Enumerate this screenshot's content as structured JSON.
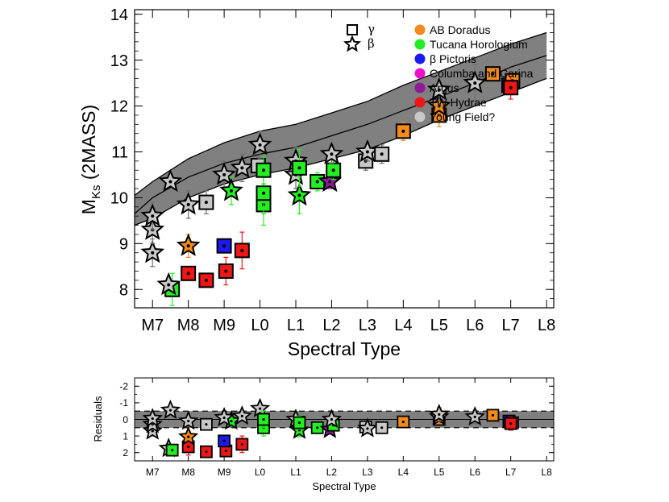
{
  "chart_data": [
    {
      "type": "scatter",
      "panel": "main",
      "xlabel": "Spectral Type",
      "ylabel": "M",
      "ylabel_sub": "Ks",
      "ylabel_suffix": "(2MASS)",
      "x_ticks": [
        "M7",
        "M8",
        "M9",
        "L0",
        "L1",
        "L2",
        "L3",
        "L4",
        "L5",
        "L6",
        "L7",
        "L8"
      ],
      "xlim": [
        -0.5,
        11.2
      ],
      "ylim": [
        14.1,
        7.6
      ],
      "y_ticks": [
        8,
        9,
        10,
        11,
        12,
        13,
        14
      ],
      "band": {
        "x": [
          -0.5,
          0.0,
          1.0,
          2.0,
          3.0,
          4.0,
          5.0,
          6.0,
          7.0,
          8.0,
          9.0,
          10.0,
          11.0
        ],
        "center": [
          9.65,
          10.0,
          10.45,
          10.75,
          10.95,
          11.1,
          11.35,
          11.6,
          11.9,
          12.2,
          12.5,
          12.85,
          13.1
        ],
        "lower": [
          9.4,
          9.55,
          10.0,
          10.3,
          10.5,
          10.65,
          10.85,
          11.05,
          11.35,
          11.7,
          12.0,
          12.3,
          12.6
        ],
        "upper": [
          10.05,
          10.35,
          10.85,
          11.2,
          11.45,
          11.6,
          11.85,
          12.1,
          12.45,
          12.75,
          13.05,
          13.35,
          13.6
        ]
      },
      "points": [
        {
          "x": 0.55,
          "y": 8.0,
          "group": "Tucana Horologium",
          "sym": "square",
          "err": 0.35
        },
        {
          "x": 1.0,
          "y": 8.35,
          "group": "TW Hydrae",
          "sym": "square",
          "err": 0.15
        },
        {
          "x": 1.5,
          "y": 8.2,
          "group": "TW Hydrae",
          "sym": "square",
          "err": 0.15
        },
        {
          "x": 2.05,
          "y": 8.4,
          "group": "TW Hydrae",
          "sym": "square",
          "err": 0.3
        },
        {
          "x": 2.5,
          "y": 8.85,
          "group": "TW Hydrae",
          "sym": "square",
          "err": 0.4
        },
        {
          "x": 2.0,
          "y": 8.95,
          "group": "β Pictoris",
          "sym": "square",
          "err": 0.1
        },
        {
          "x": 0.45,
          "y": 8.1,
          "group": "Young Field?",
          "sym": "star",
          "err": 0.1
        },
        {
          "x": 1.0,
          "y": 8.95,
          "group": "AB Doradus",
          "sym": "star",
          "err": 0.25
        },
        {
          "x": 0.0,
          "y": 8.8,
          "group": "Young Field?",
          "sym": "star",
          "err": 0.3
        },
        {
          "x": 0.0,
          "y": 9.3,
          "group": "Young Field?",
          "sym": "star",
          "err": 0.3
        },
        {
          "x": 0.0,
          "y": 9.6,
          "group": "Young Field?",
          "sym": "star",
          "err": 0.3
        },
        {
          "x": 0.5,
          "y": 10.35,
          "group": "Young Field?",
          "sym": "star",
          "err": 0.1
        },
        {
          "x": 1.0,
          "y": 9.85,
          "group": "Young Field?",
          "sym": "star",
          "err": 0.3
        },
        {
          "x": 1.5,
          "y": 9.9,
          "group": "Young Field?",
          "sym": "square",
          "err": 0.25
        },
        {
          "x": 2.0,
          "y": 10.5,
          "group": "Young Field?",
          "sym": "star",
          "err": 0.3
        },
        {
          "x": 2.2,
          "y": 10.15,
          "group": "Tucana Horologium",
          "sym": "star",
          "err": 0.3
        },
        {
          "x": 2.5,
          "y": 10.65,
          "group": "Young Field?",
          "sym": "star",
          "err": 0.3
        },
        {
          "x": 2.95,
          "y": 10.7,
          "group": "Young Field?",
          "sym": "square",
          "err": 0.2
        },
        {
          "x": 3.0,
          "y": 11.15,
          "group": "Young Field?",
          "sym": "star",
          "err": 0.3
        },
        {
          "x": 3.1,
          "y": 9.85,
          "group": "Tucana Horologium",
          "sym": "square",
          "err": 0.45
        },
        {
          "x": 3.1,
          "y": 10.1,
          "group": "Tucana Horologium",
          "sym": "square",
          "err": 0.45
        },
        {
          "x": 3.1,
          "y": 10.6,
          "group": "Tucana Horologium",
          "sym": "square",
          "err": 0.3
        },
        {
          "x": 4.0,
          "y": 10.5,
          "group": "Young Field?",
          "sym": "star",
          "err": 0.3
        },
        {
          "x": 4.0,
          "y": 10.8,
          "group": "Young Field?",
          "sym": "star",
          "err": 0.3
        },
        {
          "x": 4.1,
          "y": 10.05,
          "group": "Tucana Horologium",
          "sym": "star",
          "err": 0.4
        },
        {
          "x": 4.1,
          "y": 10.65,
          "group": "Tucana Horologium",
          "sym": "square",
          "err": 0.4
        },
        {
          "x": 4.6,
          "y": 10.35,
          "group": "Tucana Horologium",
          "sym": "square",
          "err": 0.2
        },
        {
          "x": 4.95,
          "y": 10.35,
          "group": "Argus",
          "sym": "star",
          "err": 0.15
        },
        {
          "x": 5.05,
          "y": 10.6,
          "group": "Tucana Horologium",
          "sym": "square",
          "err": 0.2
        },
        {
          "x": 5.0,
          "y": 10.95,
          "group": "Young Field?",
          "sym": "star",
          "err": 0.2
        },
        {
          "x": 5.95,
          "y": 10.8,
          "group": "Young Field?",
          "sym": "square",
          "err": 0.2
        },
        {
          "x": 6.0,
          "y": 11.0,
          "group": "Young Field?",
          "sym": "star",
          "err": 0.2
        },
        {
          "x": 6.4,
          "y": 10.95,
          "group": "Young Field?",
          "sym": "square",
          "err": 0.2
        },
        {
          "x": 7.0,
          "y": 11.45,
          "group": "AB Doradus",
          "sym": "square",
          "err": 0.2
        },
        {
          "x": 8.0,
          "y": 11.8,
          "group": "AB Doradus",
          "sym": "square",
          "err": 0.25
        },
        {
          "x": 8.0,
          "y": 12.0,
          "group": "AB Doradus",
          "sym": "star",
          "err": 0.3
        },
        {
          "x": 8.0,
          "y": 12.35,
          "group": "Young Field?",
          "sym": "star",
          "err": 0.35
        },
        {
          "x": 9.0,
          "y": 12.5,
          "group": "Young Field?",
          "sym": "star",
          "err": 0.4
        },
        {
          "x": 9.5,
          "y": 12.7,
          "group": "AB Doradus",
          "sym": "square",
          "err": 0.15
        },
        {
          "x": 9.95,
          "y": 12.45,
          "group": "β Pictoris",
          "sym": "square",
          "err": 0.15
        },
        {
          "x": 10.05,
          "y": 12.55,
          "group": "AB Doradus",
          "sym": "square",
          "err": 0.15
        },
        {
          "x": 10.0,
          "y": 12.4,
          "group": "TW Hydrae",
          "sym": "square",
          "err": 0.25
        }
      ]
    },
    {
      "type": "scatter",
      "panel": "residuals",
      "xlabel": "Spectral Type",
      "ylabel": "Residuals",
      "x_ticks": [
        "M7",
        "M8",
        "M9",
        "L0",
        "L1",
        "L2",
        "L3",
        "L4",
        "L5",
        "L6",
        "L7",
        "L8"
      ],
      "xlim": [
        -0.5,
        11.2
      ],
      "ylim": [
        -2.5,
        2.5
      ],
      "y_ticks": [
        -2,
        -1,
        0,
        1,
        2
      ],
      "band": [
        -0.5,
        0.5
      ],
      "points": [
        {
          "x": 0.0,
          "y": 0.7,
          "group": "Young Field?",
          "sym": "star",
          "err": 0.3
        },
        {
          "x": 0.0,
          "y": 0.3,
          "group": "Young Field?",
          "sym": "star",
          "err": 0.3
        },
        {
          "x": 0.0,
          "y": -0.05,
          "group": "Young Field?",
          "sym": "star",
          "err": 0.3
        },
        {
          "x": 0.5,
          "y": -0.55,
          "group": "Young Field?",
          "sym": "star",
          "err": 0.2
        },
        {
          "x": 0.45,
          "y": 1.75,
          "group": "Young Field?",
          "sym": "star",
          "err": 0.2
        },
        {
          "x": 0.55,
          "y": 1.85,
          "group": "Tucana Horologium",
          "sym": "square",
          "err": 0.35
        },
        {
          "x": 1.0,
          "y": 1.65,
          "group": "TW Hydrae",
          "sym": "square",
          "err": 0.5
        },
        {
          "x": 1.0,
          "y": 1.05,
          "group": "AB Doradus",
          "sym": "star",
          "err": 0.3
        },
        {
          "x": 1.0,
          "y": 0.1,
          "group": "Young Field?",
          "sym": "star",
          "err": 0.3
        },
        {
          "x": 1.5,
          "y": 1.95,
          "group": "TW Hydrae",
          "sym": "square",
          "err": 0.2
        },
        {
          "x": 1.5,
          "y": 0.3,
          "group": "Young Field?",
          "sym": "square",
          "err": 0.3
        },
        {
          "x": 2.05,
          "y": 1.9,
          "group": "TW Hydrae",
          "sym": "square",
          "err": 0.3
        },
        {
          "x": 2.0,
          "y": 1.3,
          "group": "β Pictoris",
          "sym": "square",
          "err": 0.2
        },
        {
          "x": 2.2,
          "y": 0.1,
          "group": "Tucana Horologium",
          "sym": "star",
          "err": 0.3
        },
        {
          "x": 2.0,
          "y": -0.1,
          "group": "Young Field?",
          "sym": "star",
          "err": 0.3
        },
        {
          "x": 2.5,
          "y": 1.5,
          "group": "TW Hydrae",
          "sym": "square",
          "err": 0.5
        },
        {
          "x": 2.5,
          "y": -0.2,
          "group": "Young Field?",
          "sym": "star",
          "err": 0.3
        },
        {
          "x": 3.0,
          "y": -0.65,
          "group": "Young Field?",
          "sym": "star",
          "err": 0.3
        },
        {
          "x": 3.1,
          "y": 0.5,
          "group": "Tucana Horologium",
          "sym": "square",
          "err": 0.5
        },
        {
          "x": 3.1,
          "y": 0.0,
          "group": "Tucana Horologium",
          "sym": "square",
          "err": 0.5
        },
        {
          "x": 4.0,
          "y": 0.0,
          "group": "Young Field?",
          "sym": "star",
          "err": 0.3
        },
        {
          "x": 4.1,
          "y": 0.65,
          "group": "Tucana Horologium",
          "sym": "star",
          "err": 0.4
        },
        {
          "x": 4.1,
          "y": 0.2,
          "group": "Tucana Horologium",
          "sym": "square",
          "err": 0.4
        },
        {
          "x": 4.6,
          "y": 0.5,
          "group": "Tucana Horologium",
          "sym": "square",
          "err": 0.2
        },
        {
          "x": 4.95,
          "y": 0.6,
          "group": "Argus",
          "sym": "star",
          "err": 0.2
        },
        {
          "x": 5.05,
          "y": 0.35,
          "group": "Tucana Horologium",
          "sym": "square",
          "err": 0.2
        },
        {
          "x": 5.0,
          "y": 0.0,
          "group": "Young Field?",
          "sym": "star",
          "err": 0.2
        },
        {
          "x": 5.95,
          "y": 0.45,
          "group": "Young Field?",
          "sym": "square",
          "err": 0.3
        },
        {
          "x": 6.0,
          "y": 0.55,
          "group": "Young Field?",
          "sym": "star",
          "err": 0.3
        },
        {
          "x": 6.4,
          "y": 0.5,
          "group": "Young Field?",
          "sym": "square",
          "err": 0.3
        },
        {
          "x": 7.0,
          "y": 0.15,
          "group": "AB Doradus",
          "sym": "square",
          "err": 0.3
        },
        {
          "x": 8.0,
          "y": 0.0,
          "group": "AB Doradus",
          "sym": "square",
          "err": 0.3
        },
        {
          "x": 8.0,
          "y": -0.15,
          "group": "AB Doradus",
          "sym": "star",
          "err": 0.3
        },
        {
          "x": 8.0,
          "y": -0.3,
          "group": "Young Field?",
          "sym": "star",
          "err": 0.4
        },
        {
          "x": 9.0,
          "y": -0.15,
          "group": "Young Field?",
          "sym": "star",
          "err": 0.4
        },
        {
          "x": 9.5,
          "y": -0.25,
          "group": "AB Doradus",
          "sym": "square",
          "err": 0.2
        },
        {
          "x": 9.95,
          "y": 0.1,
          "group": "β Pictoris",
          "sym": "square",
          "err": 0.2
        },
        {
          "x": 10.05,
          "y": 0.2,
          "group": "AB Doradus",
          "sym": "square",
          "err": 0.2
        },
        {
          "x": 10.0,
          "y": 0.25,
          "group": "TW Hydrae",
          "sym": "square",
          "err": 0.4
        }
      ]
    }
  ],
  "legend": {
    "symbols": [
      {
        "sym": "square",
        "label": "γ"
      },
      {
        "sym": "star",
        "label": "β"
      }
    ],
    "groups": [
      {
        "label": "AB Doradus",
        "color": "#f28a1e"
      },
      {
        "label": "Tucana Horologium",
        "color": "#22ee22"
      },
      {
        "label": "β Pictoris",
        "color": "#1a1aee"
      },
      {
        "label": "Columba and Carina",
        "color": "#ee11cc"
      },
      {
        "label": "Argus",
        "color": "#8e1a9a"
      },
      {
        "label": "TW Hydrae",
        "color": "#ee1616"
      },
      {
        "label": "Young Field?",
        "color": "#c8c8c8"
      }
    ]
  },
  "colors": {
    "band": "#808080",
    "errorbar_default": "#707070"
  }
}
